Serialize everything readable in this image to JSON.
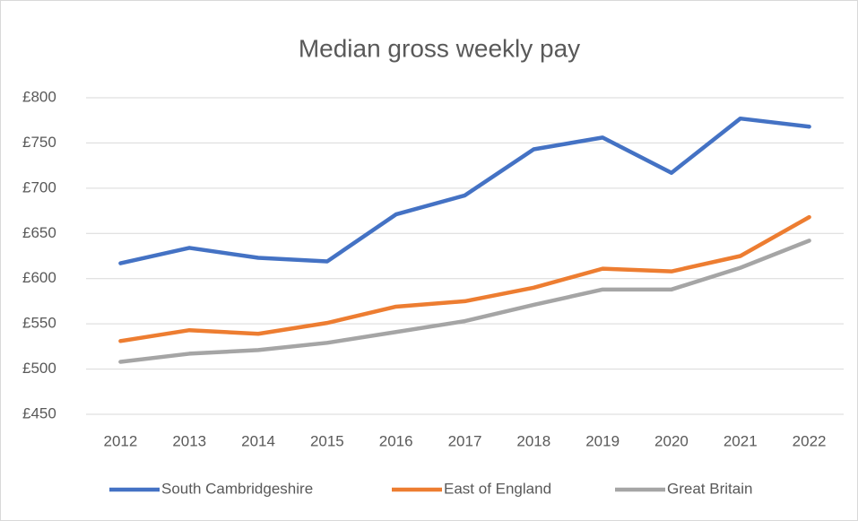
{
  "chart_data": {
    "type": "line",
    "title": "Median gross weekly pay",
    "categories": [
      "2012",
      "2013",
      "2014",
      "2015",
      "2016",
      "2017",
      "2018",
      "2019",
      "2020",
      "2021",
      "2022"
    ],
    "series": [
      {
        "name": "South Cambridgeshire",
        "color": "#4472c4",
        "values": [
          617,
          634,
          623,
          619,
          671,
          692,
          743,
          756,
          717,
          777,
          768
        ]
      },
      {
        "name": "East of England",
        "color": "#ed7d31",
        "values": [
          531,
          543,
          539,
          551,
          569,
          575,
          590,
          611,
          608,
          625,
          668
        ]
      },
      {
        "name": "Great Britain",
        "color": "#a5a5a5",
        "values": [
          508,
          517,
          521,
          529,
          541,
          553,
          571,
          588,
          588,
          612,
          642
        ]
      }
    ],
    "ylim": [
      450,
      800
    ],
    "yticks": [
      {
        "value": 450,
        "label": "£450"
      },
      {
        "value": 500,
        "label": "£500"
      },
      {
        "value": 550,
        "label": "£550"
      },
      {
        "value": 600,
        "label": "£600"
      },
      {
        "value": 650,
        "label": "£650"
      },
      {
        "value": 700,
        "label": "£700"
      },
      {
        "value": 750,
        "label": "£750"
      },
      {
        "value": 800,
        "label": "£800"
      }
    ],
    "grid": true,
    "legend": "bottom"
  }
}
